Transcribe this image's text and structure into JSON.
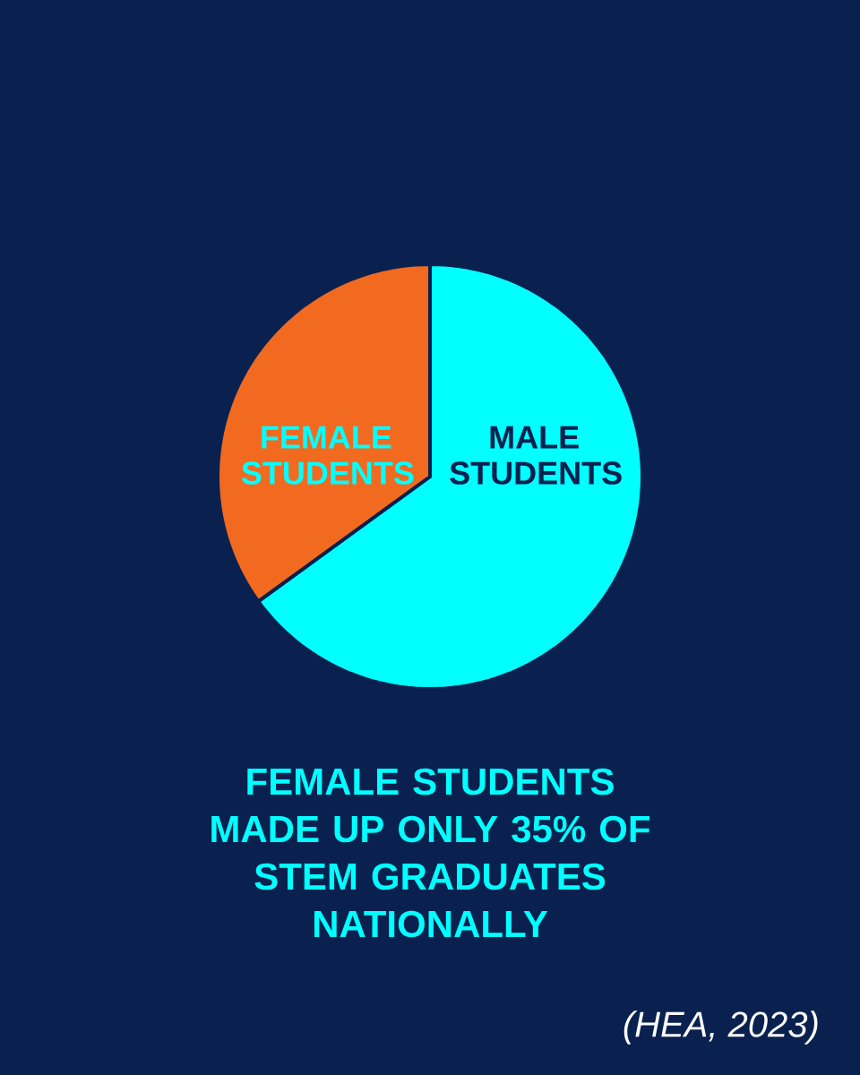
{
  "chart_data": {
    "type": "pie",
    "categories": [
      "MALE STUDENTS",
      "FEMALE STUDENTS"
    ],
    "values": [
      65,
      35
    ],
    "colors": [
      "#00ffff",
      "#f26a1f"
    ],
    "annotations": [
      "FEMALE STUDENTS MADE UP ONLY 35% OF STEM GRADUATES NATIONALLY",
      "(HEA, 2023)"
    ]
  }
}
